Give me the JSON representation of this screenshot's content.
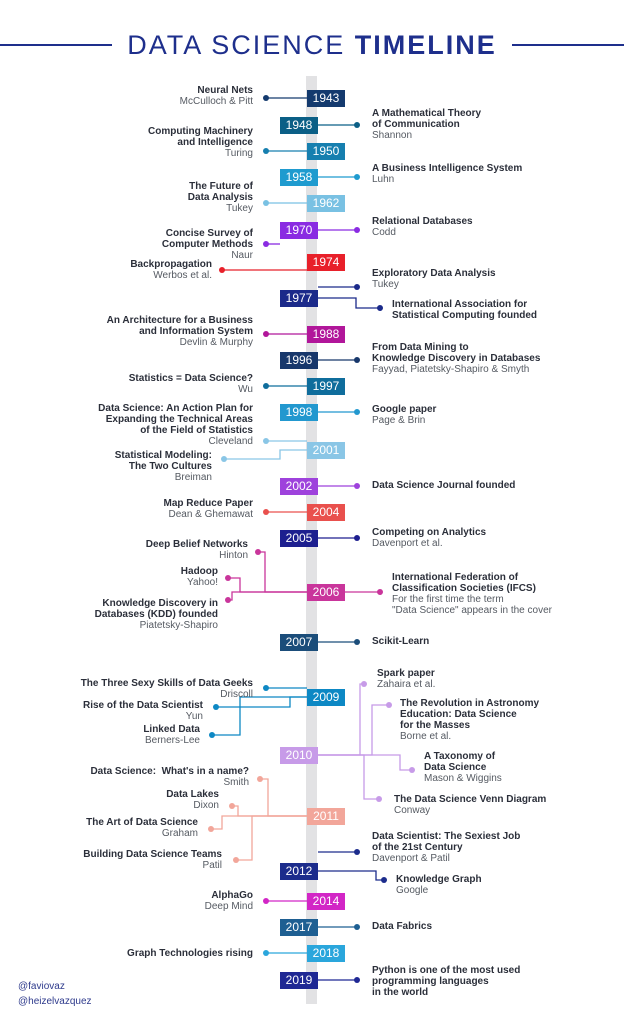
{
  "title": {
    "prefix": "DATA SCIENCE",
    "emphasis": "TIMELINE"
  },
  "handles": [
    "@faviovaz",
    "@heizelvazquez"
  ],
  "years": [
    {
      "year": "1943",
      "color": "#143a6e"
    },
    {
      "year": "1948",
      "color": "#0b5f86"
    },
    {
      "year": "1950",
      "color": "#167faf"
    },
    {
      "year": "1958",
      "color": "#1f9bcf"
    },
    {
      "year": "1962",
      "color": "#79c1e3"
    },
    {
      "year": "1970",
      "color": "#8a2be2"
    },
    {
      "year": "1974",
      "color": "#e8202a"
    },
    {
      "year": "1977",
      "color": "#1b2a8a"
    },
    {
      "year": "1988",
      "color": "#b1169a"
    },
    {
      "year": "1996",
      "color": "#17376b"
    },
    {
      "year": "1997",
      "color": "#0f6d9c"
    },
    {
      "year": "1998",
      "color": "#2298cf"
    },
    {
      "year": "2001",
      "color": "#8ac6e6"
    },
    {
      "year": "2002",
      "color": "#9e42dc"
    },
    {
      "year": "2004",
      "color": "#e9504d"
    },
    {
      "year": "2005",
      "color": "#1d1f8f"
    },
    {
      "year": "2006",
      "color": "#c9359b"
    },
    {
      "year": "2007",
      "color": "#1b4d7a"
    },
    {
      "year": "2009",
      "color": "#0d88c4"
    },
    {
      "year": "2010",
      "color": "#c79be8"
    },
    {
      "year": "2011",
      "color": "#f2a69a"
    },
    {
      "year": "2012",
      "color": "#1c2c8c"
    },
    {
      "year": "2014",
      "color": "#d226c6"
    },
    {
      "year": "2017",
      "color": "#1e5f92"
    },
    {
      "year": "2018",
      "color": "#2aa6dc"
    },
    {
      "year": "2019",
      "color": "#1f2894"
    }
  ],
  "events": [
    {
      "year": "1943",
      "side": "L",
      "title": "Neural Nets",
      "author": "McCulloch & Pitt"
    },
    {
      "year": "1948",
      "side": "R",
      "title": "A Mathematical Theory\nof Communication",
      "author": "Shannon"
    },
    {
      "year": "1950",
      "side": "L",
      "title": "Computing Machinery\nand Intelligence",
      "author": "Turing"
    },
    {
      "year": "1958",
      "side": "R",
      "title": "A Business Intelligence System",
      "author": "Luhn"
    },
    {
      "year": "1962",
      "side": "L",
      "title": "The Future of\nData Analysis",
      "author": "Tukey"
    },
    {
      "year": "1970",
      "side": "R",
      "title": "Relational Databases",
      "author": "Codd"
    },
    {
      "year": "1970",
      "side": "L",
      "title": "Concise Survey of\nComputer Methods",
      "author": "Naur"
    },
    {
      "year": "1974",
      "side": "L",
      "title": "Backpropagation",
      "author": "Werbos et al."
    },
    {
      "year": "1977",
      "side": "R",
      "title": "Exploratory Data Analysis",
      "author": "Tukey"
    },
    {
      "year": "1977",
      "side": "R",
      "title": "International Association for\nStatistical Computing founded",
      "author": ""
    },
    {
      "year": "1988",
      "side": "L",
      "title": "An Architecture for a Business\nand Information System",
      "author": "Devlin & Murphy"
    },
    {
      "year": "1996",
      "side": "R",
      "title": "From Data Mining to\nKnowledge Discovery in Databases",
      "author": "Fayyad, Piatetsky-Shapiro & Smyth"
    },
    {
      "year": "1997",
      "side": "L",
      "title": "Statistics = Data Science?",
      "author": "Wu"
    },
    {
      "year": "1998",
      "side": "R",
      "title": "Google paper",
      "author": "Page & Brin"
    },
    {
      "year": "2001",
      "side": "L",
      "title": "Data Science: An Action Plan for\nExpanding the Technical Areas\nof the Field of Statistics",
      "author": "Cleveland"
    },
    {
      "year": "2001",
      "side": "L",
      "title": "Statistical Modeling:\nThe Two Cultures",
      "author": "Breiman"
    },
    {
      "year": "2002",
      "side": "R",
      "title": "Data Science Journal founded",
      "author": ""
    },
    {
      "year": "2004",
      "side": "L",
      "title": "Map Reduce Paper",
      "author": "Dean & Ghemawat"
    },
    {
      "year": "2005",
      "side": "R",
      "title": "Competing on Analytics",
      "author": "Davenport et al."
    },
    {
      "year": "2006",
      "side": "L",
      "title": "Deep Belief Networks",
      "author": "Hinton"
    },
    {
      "year": "2006",
      "side": "L",
      "title": "Hadoop",
      "author": "Yahoo!"
    },
    {
      "year": "2006",
      "side": "R",
      "title": "International Federation of\nClassification Societies (IFCS)",
      "author": "For the first time the term\n\"Data Science\" appears in the cover"
    },
    {
      "year": "2006",
      "side": "L",
      "title": "Knowledge Discovery in\nDatabases (KDD) founded",
      "author": "Piatetsky-Shapiro"
    },
    {
      "year": "2007",
      "side": "R",
      "title": "Scikit-Learn",
      "author": ""
    },
    {
      "year": "2010",
      "side": "R",
      "title": "Spark paper",
      "author": "Zahaira et al."
    },
    {
      "year": "2009",
      "side": "L",
      "title": "The Three Sexy Skills of Data Geeks",
      "author": "Driscoll"
    },
    {
      "year": "2010",
      "side": "R",
      "title": "The Revolution in Astronomy\nEducation: Data Science\nfor the Masses",
      "author": "Borne et al."
    },
    {
      "year": "2009",
      "side": "L",
      "title": "Rise of the Data Scientist",
      "author": "Yun"
    },
    {
      "year": "2009",
      "side": "L",
      "title": "Linked Data",
      "author": "Berners-Lee"
    },
    {
      "year": "2010",
      "side": "R",
      "title": "A Taxonomy of\nData Science",
      "author": "Mason & Wiggins"
    },
    {
      "year": "2011",
      "side": "L",
      "title": "Data Science:  What's in a name?",
      "author": "Smith"
    },
    {
      "year": "2010",
      "side": "R",
      "title": "The Data Science Venn Diagram",
      "author": "Conway"
    },
    {
      "year": "2011",
      "side": "L",
      "title": "Data Lakes",
      "author": "Dixon"
    },
    {
      "year": "2011",
      "side": "L",
      "title": "The Art of Data Science",
      "author": "Graham"
    },
    {
      "year": "2012",
      "side": "R",
      "title": "Data Scientist: The Sexiest Job\nof the 21st Century",
      "author": "Davenport & Patil"
    },
    {
      "year": "2011",
      "side": "L",
      "title": "Building Data Science Teams",
      "author": "Patil"
    },
    {
      "year": "2012",
      "side": "R",
      "title": "Knowledge Graph",
      "author": "Google"
    },
    {
      "year": "2014",
      "side": "L",
      "title": "AlphaGo",
      "author": "Deep Mind"
    },
    {
      "year": "2017",
      "side": "R",
      "title": "Data Fabrics",
      "author": ""
    },
    {
      "year": "2018",
      "side": "L",
      "title": "Graph Technologies rising",
      "author": ""
    },
    {
      "year": "2019",
      "side": "R",
      "title": "Python is one of the most used\nprogramming languages\nin the world",
      "author": ""
    }
  ]
}
